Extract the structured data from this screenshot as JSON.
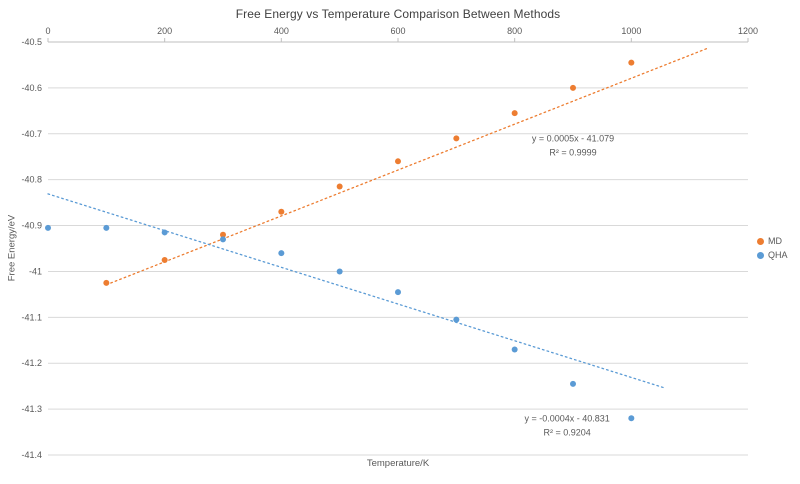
{
  "chart_data": {
    "type": "scatter",
    "title": "Free Energy vs Temperature Comparison Between Methods",
    "xlabel": "Temperature/K",
    "ylabel": "Free Energy/eV",
    "xlim": [
      0,
      1200
    ],
    "ylim": [
      -41.4,
      -40.5
    ],
    "x_ticks": [
      0,
      200,
      400,
      600,
      800,
      1000,
      1200
    ],
    "x_tick_labels": [
      "0",
      "200",
      "400",
      "600",
      "800",
      "1000",
      "1200"
    ],
    "y_ticks": [
      -40.5,
      -40.6,
      -40.7,
      -40.8,
      -40.9,
      -41.0,
      -41.1,
      -41.2,
      -41.3,
      -41.4
    ],
    "y_tick_labels": [
      "-40.5",
      "-40.6",
      "-40.7",
      "-40.8",
      "-40.9",
      "-41",
      "-41.1",
      "-41.2",
      "-41.3",
      "-41.4"
    ],
    "grid": {
      "horizontal": true,
      "vertical": false
    },
    "legend_position": "right",
    "colors": {
      "gridline": "#D9D9D9",
      "axis_line": "#BFBFBF",
      "text": "#595959"
    },
    "series": [
      {
        "name": "MD",
        "color": "#ED7D31",
        "marker": "circle",
        "x": [
          100,
          200,
          300,
          400,
          500,
          600,
          700,
          800,
          900,
          1000
        ],
        "y": [
          -41.025,
          -40.975,
          -40.92,
          -40.87,
          -40.815,
          -40.76,
          -40.71,
          -40.655,
          -40.6,
          -40.545
        ],
        "trendline": {
          "type": "linear",
          "slope": 0.0005,
          "intercept": -41.079,
          "x_start": 100,
          "x_end": 1130,
          "equation_label": "y = 0.0005x - 41.079",
          "r2_label": "R² = 0.9999",
          "label_x": 900,
          "label_y": -40.73
        }
      },
      {
        "name": "QHA",
        "color": "#5B9BD5",
        "marker": "circle",
        "x": [
          0,
          100,
          200,
          300,
          400,
          500,
          600,
          700,
          800,
          900,
          1000
        ],
        "y": [
          -40.905,
          -40.905,
          -40.915,
          -40.93,
          -40.96,
          -41.0,
          -41.045,
          -41.105,
          -41.17,
          -41.245,
          -41.32
        ],
        "trendline": {
          "type": "linear",
          "slope": -0.0004,
          "intercept": -40.831,
          "x_start": 0,
          "x_end": 1055,
          "equation_label": "y = -0.0004x - 40.831",
          "r2_label": "R² = 0.9204",
          "label_x": 890,
          "label_y": -41.34
        }
      }
    ]
  }
}
